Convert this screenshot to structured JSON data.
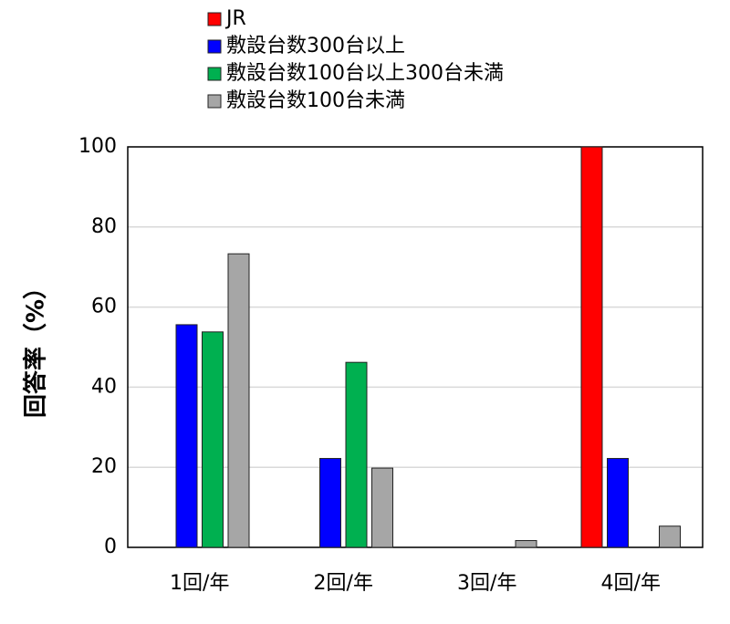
{
  "chart_data": {
    "type": "bar",
    "y_label": "回答率（%）",
    "categories": [
      "1回/年",
      "2回/年",
      "3回/年",
      "4回/年"
    ],
    "series": [
      {
        "name": "JR",
        "color": "#ff0000",
        "values": [
          0,
          0,
          0,
          100
        ]
      },
      {
        "name": "敷設台数300台以上",
        "color": "#0000ff",
        "values": [
          55.6,
          22.2,
          0,
          22.2
        ]
      },
      {
        "name": "敷設台数100台以上300台未満",
        "color": "#00b050",
        "values": [
          53.8,
          46.2,
          0,
          0
        ]
      },
      {
        "name": "敷設台数100台未満",
        "color": "#a6a6a6",
        "values": [
          73.3,
          19.8,
          1.7,
          5.3
        ]
      }
    ],
    "ylim": [
      0,
      100
    ],
    "yticks": [
      0,
      20,
      40,
      60,
      80,
      100
    ],
    "grid": true,
    "legend": "top"
  }
}
